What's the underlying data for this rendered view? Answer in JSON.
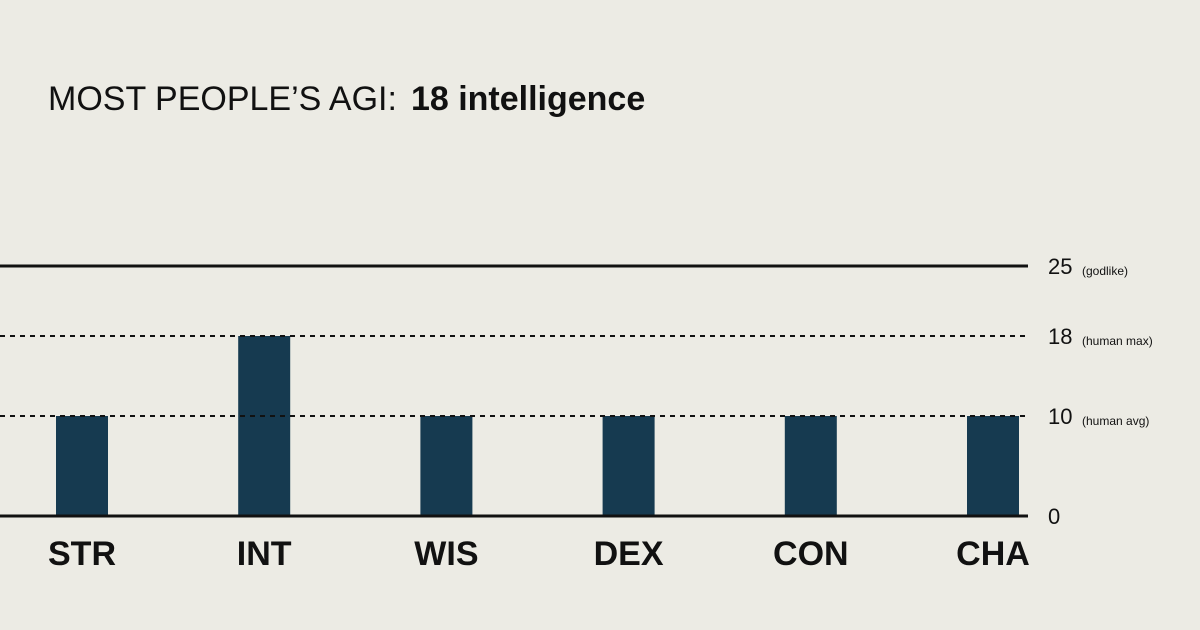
{
  "chart_data": {
    "type": "bar",
    "title": "MOST PEOPLE’S AGI:",
    "title_emphasis": "18 intelligence",
    "categories": [
      "STR",
      "INT",
      "WIS",
      "DEX",
      "CON",
      "CHA"
    ],
    "values": [
      10,
      18,
      10,
      10,
      10,
      10
    ],
    "color": "#163a50",
    "ylim": [
      0,
      25
    ],
    "yticks": [
      0,
      10,
      18,
      25
    ],
    "annotations": [
      {
        "y": 10,
        "text": "(human avg)",
        "line": "dashed"
      },
      {
        "y": 18,
        "text": "(human max)",
        "line": "dashed"
      },
      {
        "y": 25,
        "text": "(godlike)",
        "line": "solid"
      }
    ]
  }
}
